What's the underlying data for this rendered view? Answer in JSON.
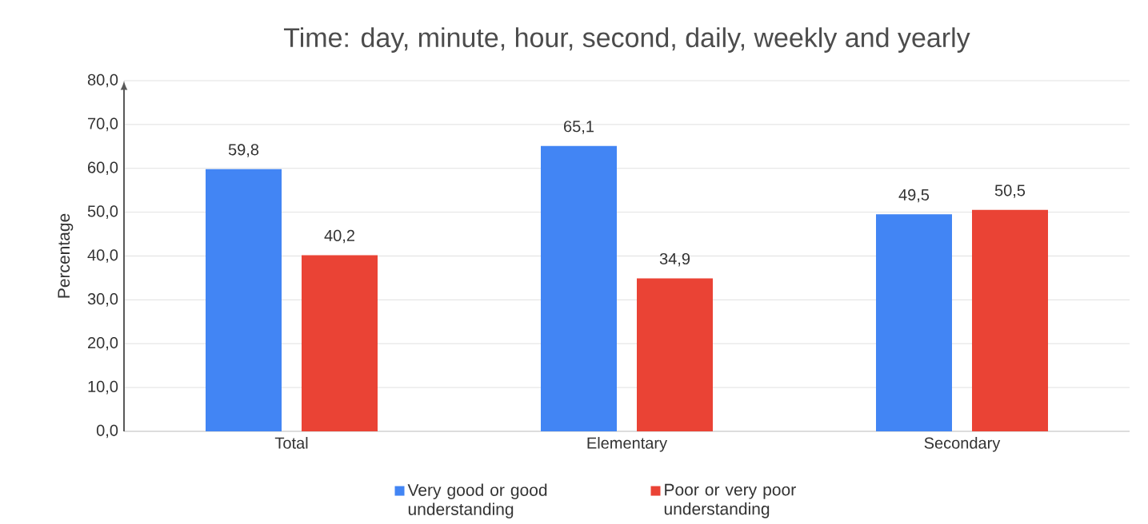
{
  "chart_data": {
    "type": "bar",
    "title": "Time: day, minute, hour, second, daily, weekly and yearly",
    "ylabel": "Percentage",
    "categories": [
      "Total",
      "Elementary",
      "Secondary"
    ],
    "series": [
      {
        "name": "Very good or good understanding",
        "color": "#4285f4",
        "values": [
          59.8,
          65.1,
          49.5
        ],
        "value_labels": [
          "59,8",
          "65,1",
          "49,5"
        ]
      },
      {
        "name": "Poor or very poor understanding",
        "color": "#ea4335",
        "values": [
          40.2,
          34.9,
          50.5
        ],
        "value_labels": [
          "40,2",
          "34,9",
          "50,5"
        ]
      }
    ],
    "ylim": [
      0,
      80
    ],
    "yticks": [
      {
        "value": 0,
        "label": "0,0"
      },
      {
        "value": 10,
        "label": "10,0"
      },
      {
        "value": 20,
        "label": "20,0"
      },
      {
        "value": 30,
        "label": "30,0"
      },
      {
        "value": 40,
        "label": "40,0"
      },
      {
        "value": 50,
        "label": "50,0"
      },
      {
        "value": 60,
        "label": "60,0"
      },
      {
        "value": 70,
        "label": "70,0"
      },
      {
        "value": 80,
        "label": "80,0"
      }
    ],
    "grid": "y",
    "legend": "bottom"
  }
}
